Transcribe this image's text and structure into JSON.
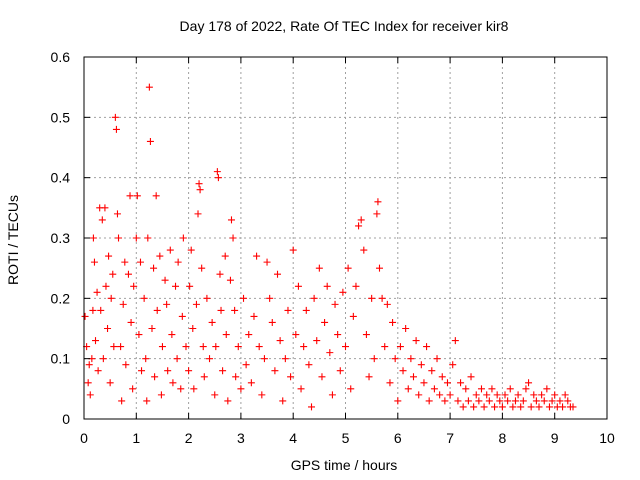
{
  "chart_data": {
    "type": "scatter",
    "title": "Day 178 of 2022, Rate Of TEC Index for receiver kir8",
    "xlabel": "GPS time / hours",
    "ylabel": "ROTI / TECUs",
    "xlim": [
      0,
      10
    ],
    "ylim": [
      0,
      0.6
    ],
    "xticks": [
      0,
      1,
      2,
      3,
      4,
      5,
      6,
      7,
      8,
      9,
      10
    ],
    "xtick_labels": [
      "0",
      "1",
      "2",
      "3",
      "4",
      "5",
      "6",
      "7",
      "8",
      "9",
      "10"
    ],
    "yticks": [
      0,
      0.1,
      0.2,
      0.3,
      0.4,
      0.5,
      0.6
    ],
    "ytick_labels": [
      "0",
      "0.1",
      "0.2",
      "0.3",
      "0.4",
      "0.5",
      "0.6"
    ],
    "grid": true,
    "marker": "+",
    "color": "#ff0000",
    "series": [
      {
        "name": "ROTI",
        "points": [
          [
            0.02,
            0.17
          ],
          [
            0.05,
            0.12
          ],
          [
            0.08,
            0.06
          ],
          [
            0.1,
            0.09
          ],
          [
            0.12,
            0.04
          ],
          [
            0.15,
            0.1
          ],
          [
            0.17,
            0.18
          ],
          [
            0.18,
            0.3
          ],
          [
            0.2,
            0.26
          ],
          [
            0.22,
            0.13
          ],
          [
            0.25,
            0.21
          ],
          [
            0.27,
            0.08
          ],
          [
            0.3,
            0.35
          ],
          [
            0.32,
            0.18
          ],
          [
            0.35,
            0.33
          ],
          [
            0.37,
            0.1
          ],
          [
            0.4,
            0.35
          ],
          [
            0.42,
            0.22
          ],
          [
            0.45,
            0.15
          ],
          [
            0.47,
            0.27
          ],
          [
            0.5,
            0.06
          ],
          [
            0.52,
            0.2
          ],
          [
            0.55,
            0.24
          ],
          [
            0.57,
            0.12
          ],
          [
            0.6,
            0.5
          ],
          [
            0.62,
            0.48
          ],
          [
            0.64,
            0.34
          ],
          [
            0.66,
            0.3
          ],
          [
            0.7,
            0.12
          ],
          [
            0.72,
            0.03
          ],
          [
            0.75,
            0.19
          ],
          [
            0.78,
            0.26
          ],
          [
            0.8,
            0.09
          ],
          [
            0.85,
            0.24
          ],
          [
            0.88,
            0.37
          ],
          [
            0.9,
            0.16
          ],
          [
            0.93,
            0.05
          ],
          [
            0.95,
            0.22
          ],
          [
            1.0,
            0.3
          ],
          [
            1.02,
            0.37
          ],
          [
            1.05,
            0.14
          ],
          [
            1.08,
            0.26
          ],
          [
            1.1,
            0.08
          ],
          [
            1.15,
            0.2
          ],
          [
            1.18,
            0.1
          ],
          [
            1.2,
            0.03
          ],
          [
            1.22,
            0.3
          ],
          [
            1.25,
            0.55
          ],
          [
            1.27,
            0.46
          ],
          [
            1.3,
            0.15
          ],
          [
            1.33,
            0.25
          ],
          [
            1.35,
            0.07
          ],
          [
            1.38,
            0.37
          ],
          [
            1.4,
            0.18
          ],
          [
            1.45,
            0.27
          ],
          [
            1.48,
            0.04
          ],
          [
            1.5,
            0.12
          ],
          [
            1.55,
            0.23
          ],
          [
            1.58,
            0.19
          ],
          [
            1.6,
            0.08
          ],
          [
            1.65,
            0.28
          ],
          [
            1.68,
            0.14
          ],
          [
            1.7,
            0.06
          ],
          [
            1.75,
            0.22
          ],
          [
            1.78,
            0.1
          ],
          [
            1.8,
            0.26
          ],
          [
            1.85,
            0.05
          ],
          [
            1.88,
            0.17
          ],
          [
            1.9,
            0.3
          ],
          [
            1.95,
            0.12
          ],
          [
            2.0,
            0.08
          ],
          [
            2.02,
            0.22
          ],
          [
            2.05,
            0.28
          ],
          [
            2.08,
            0.15
          ],
          [
            2.1,
            0.05
          ],
          [
            2.15,
            0.19
          ],
          [
            2.18,
            0.34
          ],
          [
            2.2,
            0.39
          ],
          [
            2.22,
            0.38
          ],
          [
            2.25,
            0.25
          ],
          [
            2.28,
            0.12
          ],
          [
            2.3,
            0.07
          ],
          [
            2.35,
            0.2
          ],
          [
            2.4,
            0.1
          ],
          [
            2.45,
            0.16
          ],
          [
            2.5,
            0.04
          ],
          [
            2.52,
            0.12
          ],
          [
            2.55,
            0.41
          ],
          [
            2.57,
            0.4
          ],
          [
            2.6,
            0.24
          ],
          [
            2.62,
            0.18
          ],
          [
            2.65,
            0.08
          ],
          [
            2.7,
            0.27
          ],
          [
            2.72,
            0.14
          ],
          [
            2.75,
            0.03
          ],
          [
            2.8,
            0.23
          ],
          [
            2.82,
            0.33
          ],
          [
            2.85,
            0.3
          ],
          [
            2.88,
            0.18
          ],
          [
            2.9,
            0.07
          ],
          [
            2.95,
            0.12
          ],
          [
            3.0,
            0.05
          ],
          [
            3.05,
            0.2
          ],
          [
            3.1,
            0.09
          ],
          [
            3.15,
            0.14
          ],
          [
            3.2,
            0.06
          ],
          [
            3.25,
            0.17
          ],
          [
            3.3,
            0.27
          ],
          [
            3.35,
            0.12
          ],
          [
            3.4,
            0.04
          ],
          [
            3.45,
            0.1
          ],
          [
            3.5,
            0.26
          ],
          [
            3.55,
            0.2
          ],
          [
            3.6,
            0.16
          ],
          [
            3.65,
            0.08
          ],
          [
            3.7,
            0.24
          ],
          [
            3.75,
            0.13
          ],
          [
            3.8,
            0.03
          ],
          [
            3.85,
            0.1
          ],
          [
            3.9,
            0.18
          ],
          [
            3.95,
            0.07
          ],
          [
            4.0,
            0.28
          ],
          [
            4.05,
            0.14
          ],
          [
            4.1,
            0.22
          ],
          [
            4.15,
            0.05
          ],
          [
            4.2,
            0.12
          ],
          [
            4.25,
            0.18
          ],
          [
            4.3,
            0.09
          ],
          [
            4.35,
            0.02
          ],
          [
            4.4,
            0.2
          ],
          [
            4.45,
            0.13
          ],
          [
            4.5,
            0.25
          ],
          [
            4.55,
            0.07
          ],
          [
            4.6,
            0.16
          ],
          [
            4.65,
            0.22
          ],
          [
            4.7,
            0.11
          ],
          [
            4.75,
            0.04
          ],
          [
            4.8,
            0.19
          ],
          [
            4.85,
            0.14
          ],
          [
            4.9,
            0.08
          ],
          [
            4.95,
            0.21
          ],
          [
            5.0,
            0.12
          ],
          [
            5.05,
            0.25
          ],
          [
            5.1,
            0.05
          ],
          [
            5.15,
            0.17
          ],
          [
            5.2,
            0.22
          ],
          [
            5.25,
            0.32
          ],
          [
            5.3,
            0.33
          ],
          [
            5.35,
            0.28
          ],
          [
            5.4,
            0.14
          ],
          [
            5.45,
            0.07
          ],
          [
            5.5,
            0.2
          ],
          [
            5.55,
            0.1
          ],
          [
            5.6,
            0.34
          ],
          [
            5.62,
            0.36
          ],
          [
            5.65,
            0.25
          ],
          [
            5.7,
            0.2
          ],
          [
            5.75,
            0.12
          ],
          [
            5.8,
            0.19
          ],
          [
            5.85,
            0.06
          ],
          [
            5.9,
            0.16
          ],
          [
            5.95,
            0.1
          ],
          [
            6.0,
            0.03
          ],
          [
            6.05,
            0.12
          ],
          [
            6.1,
            0.08
          ],
          [
            6.15,
            0.15
          ],
          [
            6.2,
            0.05
          ],
          [
            6.25,
            0.1
          ],
          [
            6.3,
            0.07
          ],
          [
            6.35,
            0.13
          ],
          [
            6.4,
            0.04
          ],
          [
            6.45,
            0.09
          ],
          [
            6.5,
            0.06
          ],
          [
            6.55,
            0.12
          ],
          [
            6.6,
            0.03
          ],
          [
            6.65,
            0.08
          ],
          [
            6.7,
            0.05
          ],
          [
            6.75,
            0.1
          ],
          [
            6.8,
            0.04
          ],
          [
            6.85,
            0.07
          ],
          [
            6.9,
            0.03
          ],
          [
            6.95,
            0.06
          ],
          [
            7.0,
            0.04
          ],
          [
            7.05,
            0.09
          ],
          [
            7.1,
            0.13
          ],
          [
            7.15,
            0.03
          ],
          [
            7.2,
            0.06
          ],
          [
            7.25,
            0.02
          ],
          [
            7.3,
            0.05
          ],
          [
            7.35,
            0.03
          ],
          [
            7.4,
            0.07
          ],
          [
            7.45,
            0.02
          ],
          [
            7.5,
            0.04
          ],
          [
            7.55,
            0.03
          ],
          [
            7.6,
            0.05
          ],
          [
            7.65,
            0.02
          ],
          [
            7.7,
            0.04
          ],
          [
            7.75,
            0.03
          ],
          [
            7.8,
            0.05
          ],
          [
            7.85,
            0.02
          ],
          [
            7.9,
            0.04
          ],
          [
            7.95,
            0.03
          ],
          [
            8.0,
            0.02
          ],
          [
            8.05,
            0.04
          ],
          [
            8.1,
            0.03
          ],
          [
            8.15,
            0.05
          ],
          [
            8.2,
            0.02
          ],
          [
            8.25,
            0.03
          ],
          [
            8.3,
            0.04
          ],
          [
            8.35,
            0.02
          ],
          [
            8.4,
            0.03
          ],
          [
            8.45,
            0.05
          ],
          [
            8.5,
            0.06
          ],
          [
            8.55,
            0.02
          ],
          [
            8.6,
            0.04
          ],
          [
            8.65,
            0.03
          ],
          [
            8.7,
            0.02
          ],
          [
            8.75,
            0.04
          ],
          [
            8.8,
            0.03
          ],
          [
            8.85,
            0.05
          ],
          [
            8.9,
            0.02
          ],
          [
            8.95,
            0.03
          ],
          [
            9.0,
            0.04
          ],
          [
            9.05,
            0.02
          ],
          [
            9.1,
            0.03
          ],
          [
            9.15,
            0.02
          ],
          [
            9.2,
            0.04
          ],
          [
            9.25,
            0.03
          ],
          [
            9.3,
            0.02
          ],
          [
            9.35,
            0.02
          ]
        ]
      }
    ]
  }
}
